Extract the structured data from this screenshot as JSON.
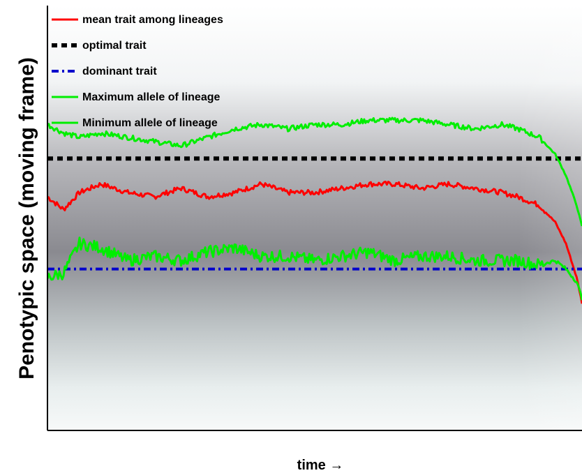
{
  "chart_data": {
    "type": "line",
    "title": "",
    "xlabel": "time →",
    "ylabel": "Penotypic space (moving frame)",
    "xlim": [
      0,
      1
    ],
    "ylim": [
      0,
      1
    ],
    "grid": false,
    "legend_position": "top-left",
    "background": "grayscale density of lineages, darkest around the dominant trait",
    "series": [
      {
        "name": "mean trait among lineages",
        "color": "#ff0000",
        "style": "solid",
        "x": [
          0,
          0.03,
          0.06,
          0.1,
          0.15,
          0.2,
          0.25,
          0.3,
          0.35,
          0.4,
          0.45,
          0.5,
          0.55,
          0.6,
          0.65,
          0.7,
          0.75,
          0.8,
          0.85,
          0.88,
          0.92,
          0.95,
          0.97,
          0.99,
          1.0
        ],
        "y": [
          0.55,
          0.52,
          0.56,
          0.58,
          0.56,
          0.55,
          0.57,
          0.55,
          0.56,
          0.58,
          0.56,
          0.56,
          0.57,
          0.58,
          0.58,
          0.57,
          0.58,
          0.57,
          0.56,
          0.55,
          0.53,
          0.49,
          0.44,
          0.36,
          0.3
        ]
      },
      {
        "name": "optimal trait",
        "color": "#000000",
        "style": "dashed",
        "x": [
          0,
          1
        ],
        "y": [
          0.64,
          0.64
        ]
      },
      {
        "name": "dominant trait",
        "color": "#0000cc",
        "style": "dashdot",
        "x": [
          0,
          1
        ],
        "y": [
          0.38,
          0.38
        ]
      },
      {
        "name": "Maximum allele of lineage",
        "color": "#00ee00",
        "style": "solid",
        "x": [
          0,
          0.03,
          0.06,
          0.1,
          0.15,
          0.2,
          0.25,
          0.3,
          0.35,
          0.4,
          0.45,
          0.5,
          0.55,
          0.6,
          0.65,
          0.7,
          0.75,
          0.8,
          0.85,
          0.88,
          0.92,
          0.95,
          0.97,
          0.99,
          1.0
        ],
        "y": [
          0.72,
          0.7,
          0.69,
          0.7,
          0.69,
          0.68,
          0.67,
          0.69,
          0.71,
          0.72,
          0.71,
          0.72,
          0.72,
          0.73,
          0.73,
          0.73,
          0.72,
          0.71,
          0.72,
          0.71,
          0.69,
          0.65,
          0.6,
          0.53,
          0.48
        ]
      },
      {
        "name": "Minimum allele of lineage",
        "color": "#00ee00",
        "style": "solid",
        "x": [
          0,
          0.03,
          0.06,
          0.1,
          0.15,
          0.2,
          0.25,
          0.3,
          0.35,
          0.4,
          0.45,
          0.5,
          0.55,
          0.6,
          0.65,
          0.7,
          0.75,
          0.8,
          0.85,
          0.88,
          0.92,
          0.95,
          0.97,
          0.99,
          1.0
        ],
        "y": [
          0.36,
          0.37,
          0.44,
          0.43,
          0.4,
          0.41,
          0.4,
          0.42,
          0.43,
          0.41,
          0.41,
          0.4,
          0.41,
          0.42,
          0.4,
          0.41,
          0.41,
          0.4,
          0.4,
          0.4,
          0.39,
          0.4,
          0.38,
          0.35,
          0.31
        ]
      }
    ]
  }
}
